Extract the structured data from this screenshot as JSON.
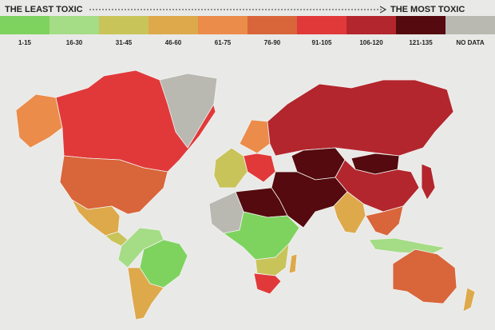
{
  "header": {
    "least": "THE LEAST TOXIC",
    "most": "THE MOST TOXIC"
  },
  "legend": [
    {
      "label": "1-15",
      "color": "#7ed35f"
    },
    {
      "label": "16-30",
      "color": "#a5dc86"
    },
    {
      "label": "31-45",
      "color": "#c9c45a"
    },
    {
      "label": "46-60",
      "color": "#dea94a"
    },
    {
      "label": "61-75",
      "color": "#eb8c4a"
    },
    {
      "label": "76-90",
      "color": "#d9653a"
    },
    {
      "label": "91-105",
      "color": "#e1393a"
    },
    {
      "label": "106-120",
      "color": "#b3262d"
    },
    {
      "label": "121-135",
      "color": "#540a0e"
    },
    {
      "label": "NO DATA",
      "color": "#b9b9b2"
    }
  ]
}
